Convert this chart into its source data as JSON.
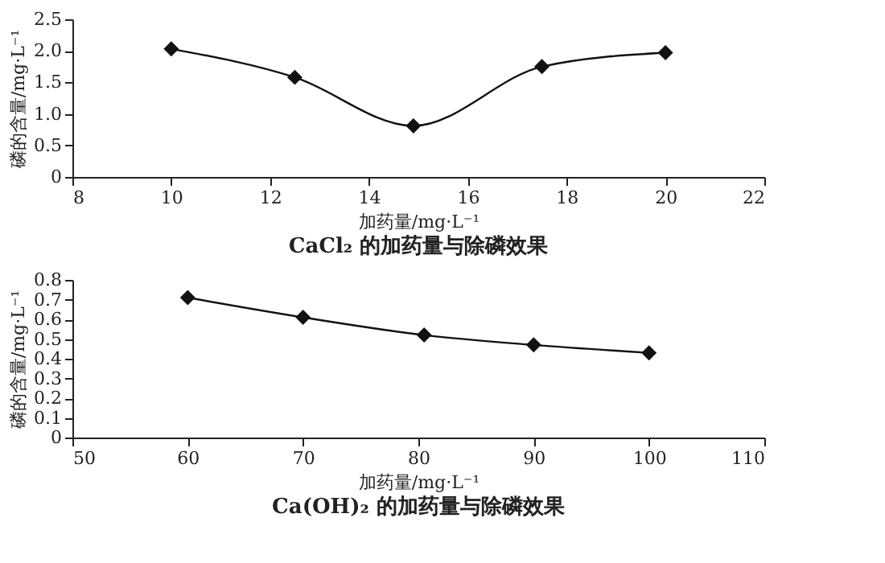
{
  "chart_data": [
    {
      "type": "line",
      "title": "CaCl₂ 的加药量与除磷效果",
      "xlabel": "加药量/mg·L⁻¹",
      "ylabel": "磷的含量/mg·L⁻¹",
      "x": [
        10,
        12.5,
        14.9,
        17.5,
        20
      ],
      "series": [
        {
          "color": "#111111",
          "values": [
            2.03,
            1.58,
            0.81,
            1.75,
            1.97
          ]
        }
      ],
      "xlim": [
        8,
        22
      ],
      "xticks": [
        8,
        10,
        12,
        14,
        16,
        18,
        20,
        22
      ],
      "ylim": [
        0,
        2.5
      ],
      "yticks": [
        {
          "value": 0,
          "label": "0"
        },
        {
          "value": 0.5,
          "label": "0.5"
        },
        {
          "value": 1,
          "label": "1.0"
        },
        {
          "value": 1.5,
          "label": "1.5"
        },
        {
          "value": 2,
          "label": "2.0"
        },
        {
          "value": 2.5,
          "label": "2.5"
        }
      ],
      "marker": "diamond",
      "line_style": "solid"
    },
    {
      "type": "line",
      "title": "Ca(OH)₂ 的加药量与除磷效果",
      "xlabel": "加药量/mg·L⁻¹",
      "ylabel": "磷的含量/mg·L⁻¹",
      "x": [
        60,
        70,
        80.5,
        90,
        100
      ],
      "series": [
        {
          "color": "#111111",
          "values": [
            0.71,
            0.61,
            0.52,
            0.47,
            0.43
          ]
        }
      ],
      "xlim": [
        50,
        110
      ],
      "xticks": [
        50,
        60,
        70,
        80,
        90,
        100,
        110
      ],
      "ylim": [
        0,
        0.8
      ],
      "yticks": [
        0,
        0.1,
        0.2,
        0.3,
        0.4,
        0.5,
        0.6,
        0.7,
        0.8
      ],
      "marker": "diamond",
      "line_style": "solid"
    }
  ]
}
